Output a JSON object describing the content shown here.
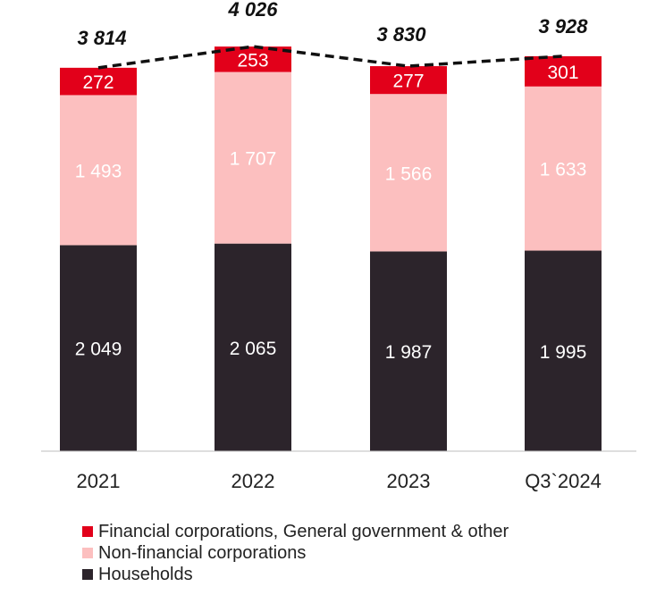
{
  "chart_data": {
    "type": "bar",
    "stacked": true,
    "categories": [
      "2021",
      "2022",
      "2023",
      "Q3`2024"
    ],
    "series": [
      {
        "name": "Households",
        "values": [
          2049,
          2065,
          1987,
          1995
        ],
        "labels": [
          "2 049",
          "2 065",
          "1 987",
          "1 995"
        ],
        "color": "#2c242b",
        "label_color": "#ffffff"
      },
      {
        "name": "Non-financial corporations",
        "values": [
          1493,
          1707,
          1566,
          1633
        ],
        "labels": [
          "1 493",
          "1 707",
          "1 566",
          "1 633"
        ],
        "color": "#fcbfbf",
        "label_color": "#ffffff"
      },
      {
        "name": "Financial corporations, General government & other",
        "values": [
          272,
          253,
          277,
          301
        ],
        "labels": [
          "272",
          "253",
          "277",
          "301"
        ],
        "color": "#e2001a",
        "label_color": "#ffffff"
      }
    ],
    "totals": [
      3814,
      4026,
      3830,
      3928
    ],
    "total_labels": [
      "3 814",
      "4 026",
      "3 830",
      "3 928"
    ],
    "total_line_style": "dashed",
    "ylim": [
      0,
      4026
    ],
    "grid": false,
    "legend_position": "bottom-left"
  },
  "legend": [
    {
      "label": "Financial corporations, General government & other",
      "color": "#e2001a"
    },
    {
      "label": "Non-financial corporations",
      "color": "#fcbfbf"
    },
    {
      "label": "Households",
      "color": "#2c242b"
    }
  ]
}
